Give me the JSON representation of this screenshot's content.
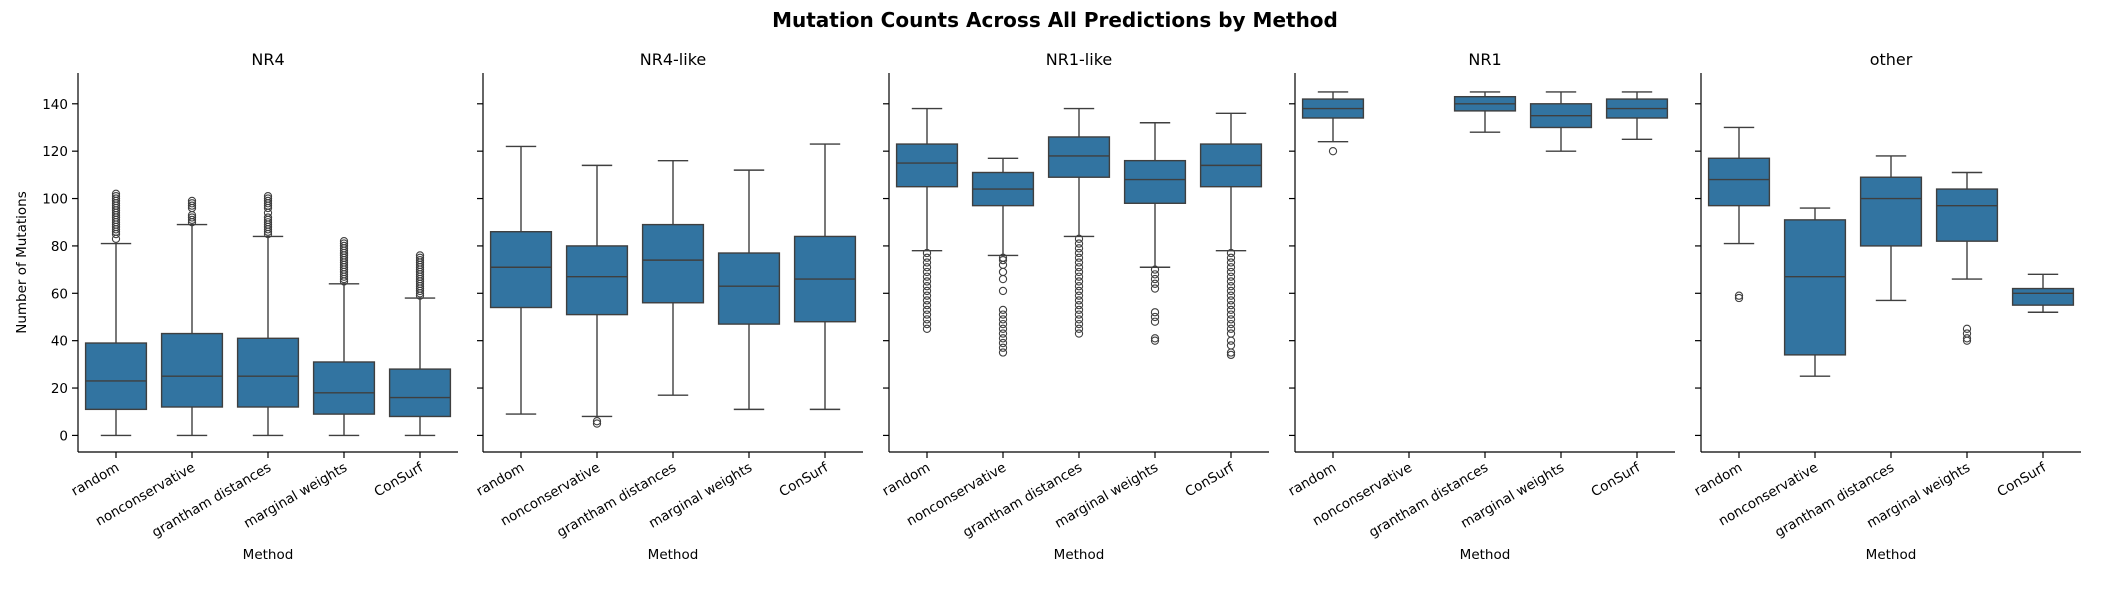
{
  "chart_data": {
    "type": "box",
    "title": "Mutation Counts Across All Predictions by Method",
    "ylabel": "Number of Mutations",
    "xlabel": "Method",
    "ylim": [
      -7,
      153
    ],
    "yticks": [
      0,
      20,
      40,
      60,
      80,
      100,
      120,
      140
    ],
    "categories": [
      "random",
      "nonconservative",
      "grantham distances",
      "marginal weights",
      "ConSurf"
    ],
    "box_color": "#3274a1",
    "panels": [
      {
        "title": "NR4",
        "boxes": [
          {
            "category": "random",
            "whislo": 0,
            "q1": 11,
            "med": 23,
            "q3": 39,
            "whishi": 81,
            "fliers": [
              83,
              85,
              86,
              87,
              88,
              89,
              90,
              91,
              92,
              93,
              94,
              95,
              96,
              97,
              98,
              99,
              100,
              101,
              102
            ]
          },
          {
            "category": "nonconservative",
            "whislo": 0,
            "q1": 12,
            "med": 25,
            "q3": 43,
            "whishi": 89,
            "fliers": [
              90,
              91,
              92,
              93,
              96,
              97,
              98,
              99
            ]
          },
          {
            "category": "grantham distances",
            "whislo": 0,
            "q1": 12,
            "med": 25,
            "q3": 41,
            "whishi": 84,
            "fliers": [
              85,
              86,
              87,
              88,
              89,
              90,
              91,
              92,
              94,
              96,
              97,
              98,
              99,
              100,
              101
            ]
          },
          {
            "category": "marginal weights",
            "whislo": 0,
            "q1": 9,
            "med": 18,
            "q3": 31,
            "whishi": 64,
            "fliers": [
              65,
              66,
              67,
              68,
              69,
              70,
              71,
              72,
              73,
              74,
              75,
              76,
              77,
              78,
              79,
              80,
              81,
              82
            ]
          },
          {
            "category": "ConSurf",
            "whislo": 0,
            "q1": 8,
            "med": 16,
            "q3": 28,
            "whishi": 58,
            "fliers": [
              59,
              60,
              61,
              62,
              63,
              64,
              65,
              66,
              67,
              68,
              69,
              70,
              71,
              72,
              73,
              74,
              75,
              76
            ]
          }
        ]
      },
      {
        "title": "NR4-like",
        "boxes": [
          {
            "category": "random",
            "whislo": 9,
            "q1": 54,
            "med": 71,
            "q3": 86,
            "whishi": 122,
            "fliers": []
          },
          {
            "category": "nonconservative",
            "whislo": 8,
            "q1": 51,
            "med": 67,
            "q3": 80,
            "whishi": 114,
            "fliers": [
              5,
              6
            ]
          },
          {
            "category": "grantham distances",
            "whislo": 17,
            "q1": 56,
            "med": 74,
            "q3": 89,
            "whishi": 116,
            "fliers": []
          },
          {
            "category": "marginal weights",
            "whislo": 11,
            "q1": 47,
            "med": 63,
            "q3": 77,
            "whishi": 112,
            "fliers": []
          },
          {
            "category": "ConSurf",
            "whislo": 11,
            "q1": 48,
            "med": 66,
            "q3": 84,
            "whishi": 123,
            "fliers": []
          }
        ]
      },
      {
        "title": "NR1-like",
        "boxes": [
          {
            "category": "random",
            "whislo": 78,
            "q1": 105,
            "med": 115,
            "q3": 123,
            "whishi": 138,
            "fliers": [
              45,
              47,
              49,
              51,
              53,
              55,
              57,
              59,
              61,
              63,
              65,
              67,
              69,
              71,
              73,
              75,
              77
            ]
          },
          {
            "category": "nonconservative",
            "whislo": 76,
            "q1": 97,
            "med": 104,
            "q3": 111,
            "whishi": 117,
            "fliers": [
              35,
              37,
              39,
              41,
              43,
              45,
              47,
              49,
              51,
              53,
              61,
              66,
              69,
              72,
              74,
              75
            ]
          },
          {
            "category": "grantham distances",
            "whislo": 84,
            "q1": 109,
            "med": 118,
            "q3": 126,
            "whishi": 138,
            "fliers": [
              43,
              45,
              47,
              49,
              51,
              53,
              55,
              57,
              59,
              61,
              63,
              65,
              67,
              69,
              71,
              73,
              75,
              77,
              79,
              81,
              83
            ]
          },
          {
            "category": "marginal weights",
            "whislo": 71,
            "q1": 98,
            "med": 108,
            "q3": 116,
            "whishi": 132,
            "fliers": [
              40,
              41,
              48,
              50,
              52,
              62,
              64,
              66,
              68,
              70
            ]
          },
          {
            "category": "ConSurf",
            "whislo": 78,
            "q1": 105,
            "med": 114,
            "q3": 123,
            "whishi": 136,
            "fliers": [
              34,
              35,
              38,
              40,
              43,
              45,
              47,
              49,
              51,
              53,
              55,
              57,
              59,
              61,
              63,
              65,
              67,
              69,
              71,
              73,
              75,
              77
            ]
          }
        ]
      },
      {
        "title": "NR1",
        "boxes": [
          {
            "category": "random",
            "whislo": 124,
            "q1": 134,
            "med": 138,
            "q3": 142,
            "whishi": 145,
            "fliers": [
              120
            ]
          },
          {
            "category": "nonconservative",
            "empty": true
          },
          {
            "category": "grantham distances",
            "whislo": 128,
            "q1": 137,
            "med": 140,
            "q3": 143,
            "whishi": 145,
            "fliers": []
          },
          {
            "category": "marginal weights",
            "whislo": 120,
            "q1": 130,
            "med": 135,
            "q3": 140,
            "whishi": 145,
            "fliers": []
          },
          {
            "category": "ConSurf",
            "whislo": 125,
            "q1": 134,
            "med": 138,
            "q3": 142,
            "whishi": 145,
            "fliers": []
          }
        ]
      },
      {
        "title": "other",
        "boxes": [
          {
            "category": "random",
            "whislo": 81,
            "q1": 97,
            "med": 108,
            "q3": 117,
            "whishi": 130,
            "fliers": [
              58,
              59
            ]
          },
          {
            "category": "nonconservative",
            "whislo": 25,
            "q1": 34,
            "med": 67,
            "q3": 91,
            "whishi": 96,
            "fliers": []
          },
          {
            "category": "grantham distances",
            "whislo": 57,
            "q1": 80,
            "med": 100,
            "q3": 109,
            "whishi": 118,
            "fliers": []
          },
          {
            "category": "marginal weights",
            "whislo": 66,
            "q1": 82,
            "med": 97,
            "q3": 104,
            "whishi": 111,
            "fliers": [
              40,
              41,
              43,
              45
            ]
          },
          {
            "category": "ConSurf",
            "whislo": 52,
            "q1": 55,
            "med": 60,
            "q3": 62,
            "whishi": 68,
            "fliers": []
          }
        ]
      }
    ]
  }
}
